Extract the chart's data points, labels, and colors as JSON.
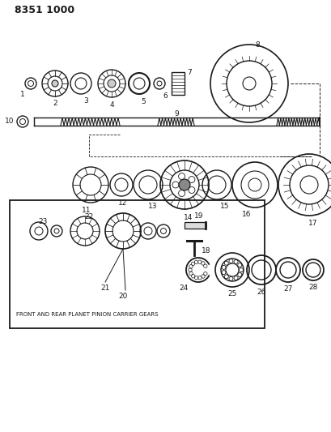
{
  "title": "8351 1000",
  "bg_color": "#ffffff",
  "line_color": "#1a1a1a",
  "text_color": "#1a1a1a",
  "figsize": [
    4.1,
    5.33
  ],
  "dpi": 100,
  "subtitle_box": "FRONT AND REAR PLANET PINION CARRIER GEARS"
}
